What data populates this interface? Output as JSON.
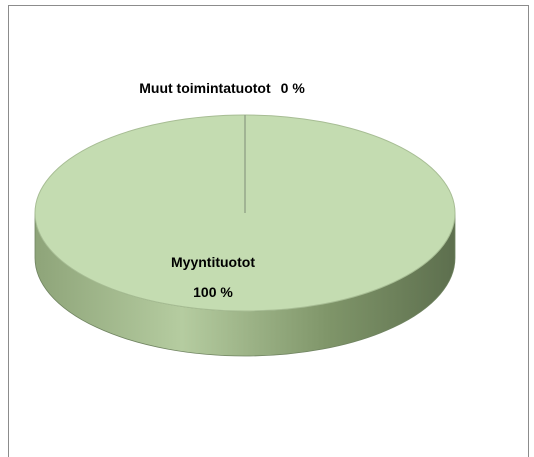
{
  "chart_data": {
    "type": "pie",
    "categories": [
      "Myyntituotot",
      "Muut toimintatuotot"
    ],
    "values": [
      100,
      0
    ],
    "value_labels": [
      "100 %",
      "0 %"
    ],
    "colors": [
      "#c4dcb1",
      "#c4dcb1"
    ]
  }
}
